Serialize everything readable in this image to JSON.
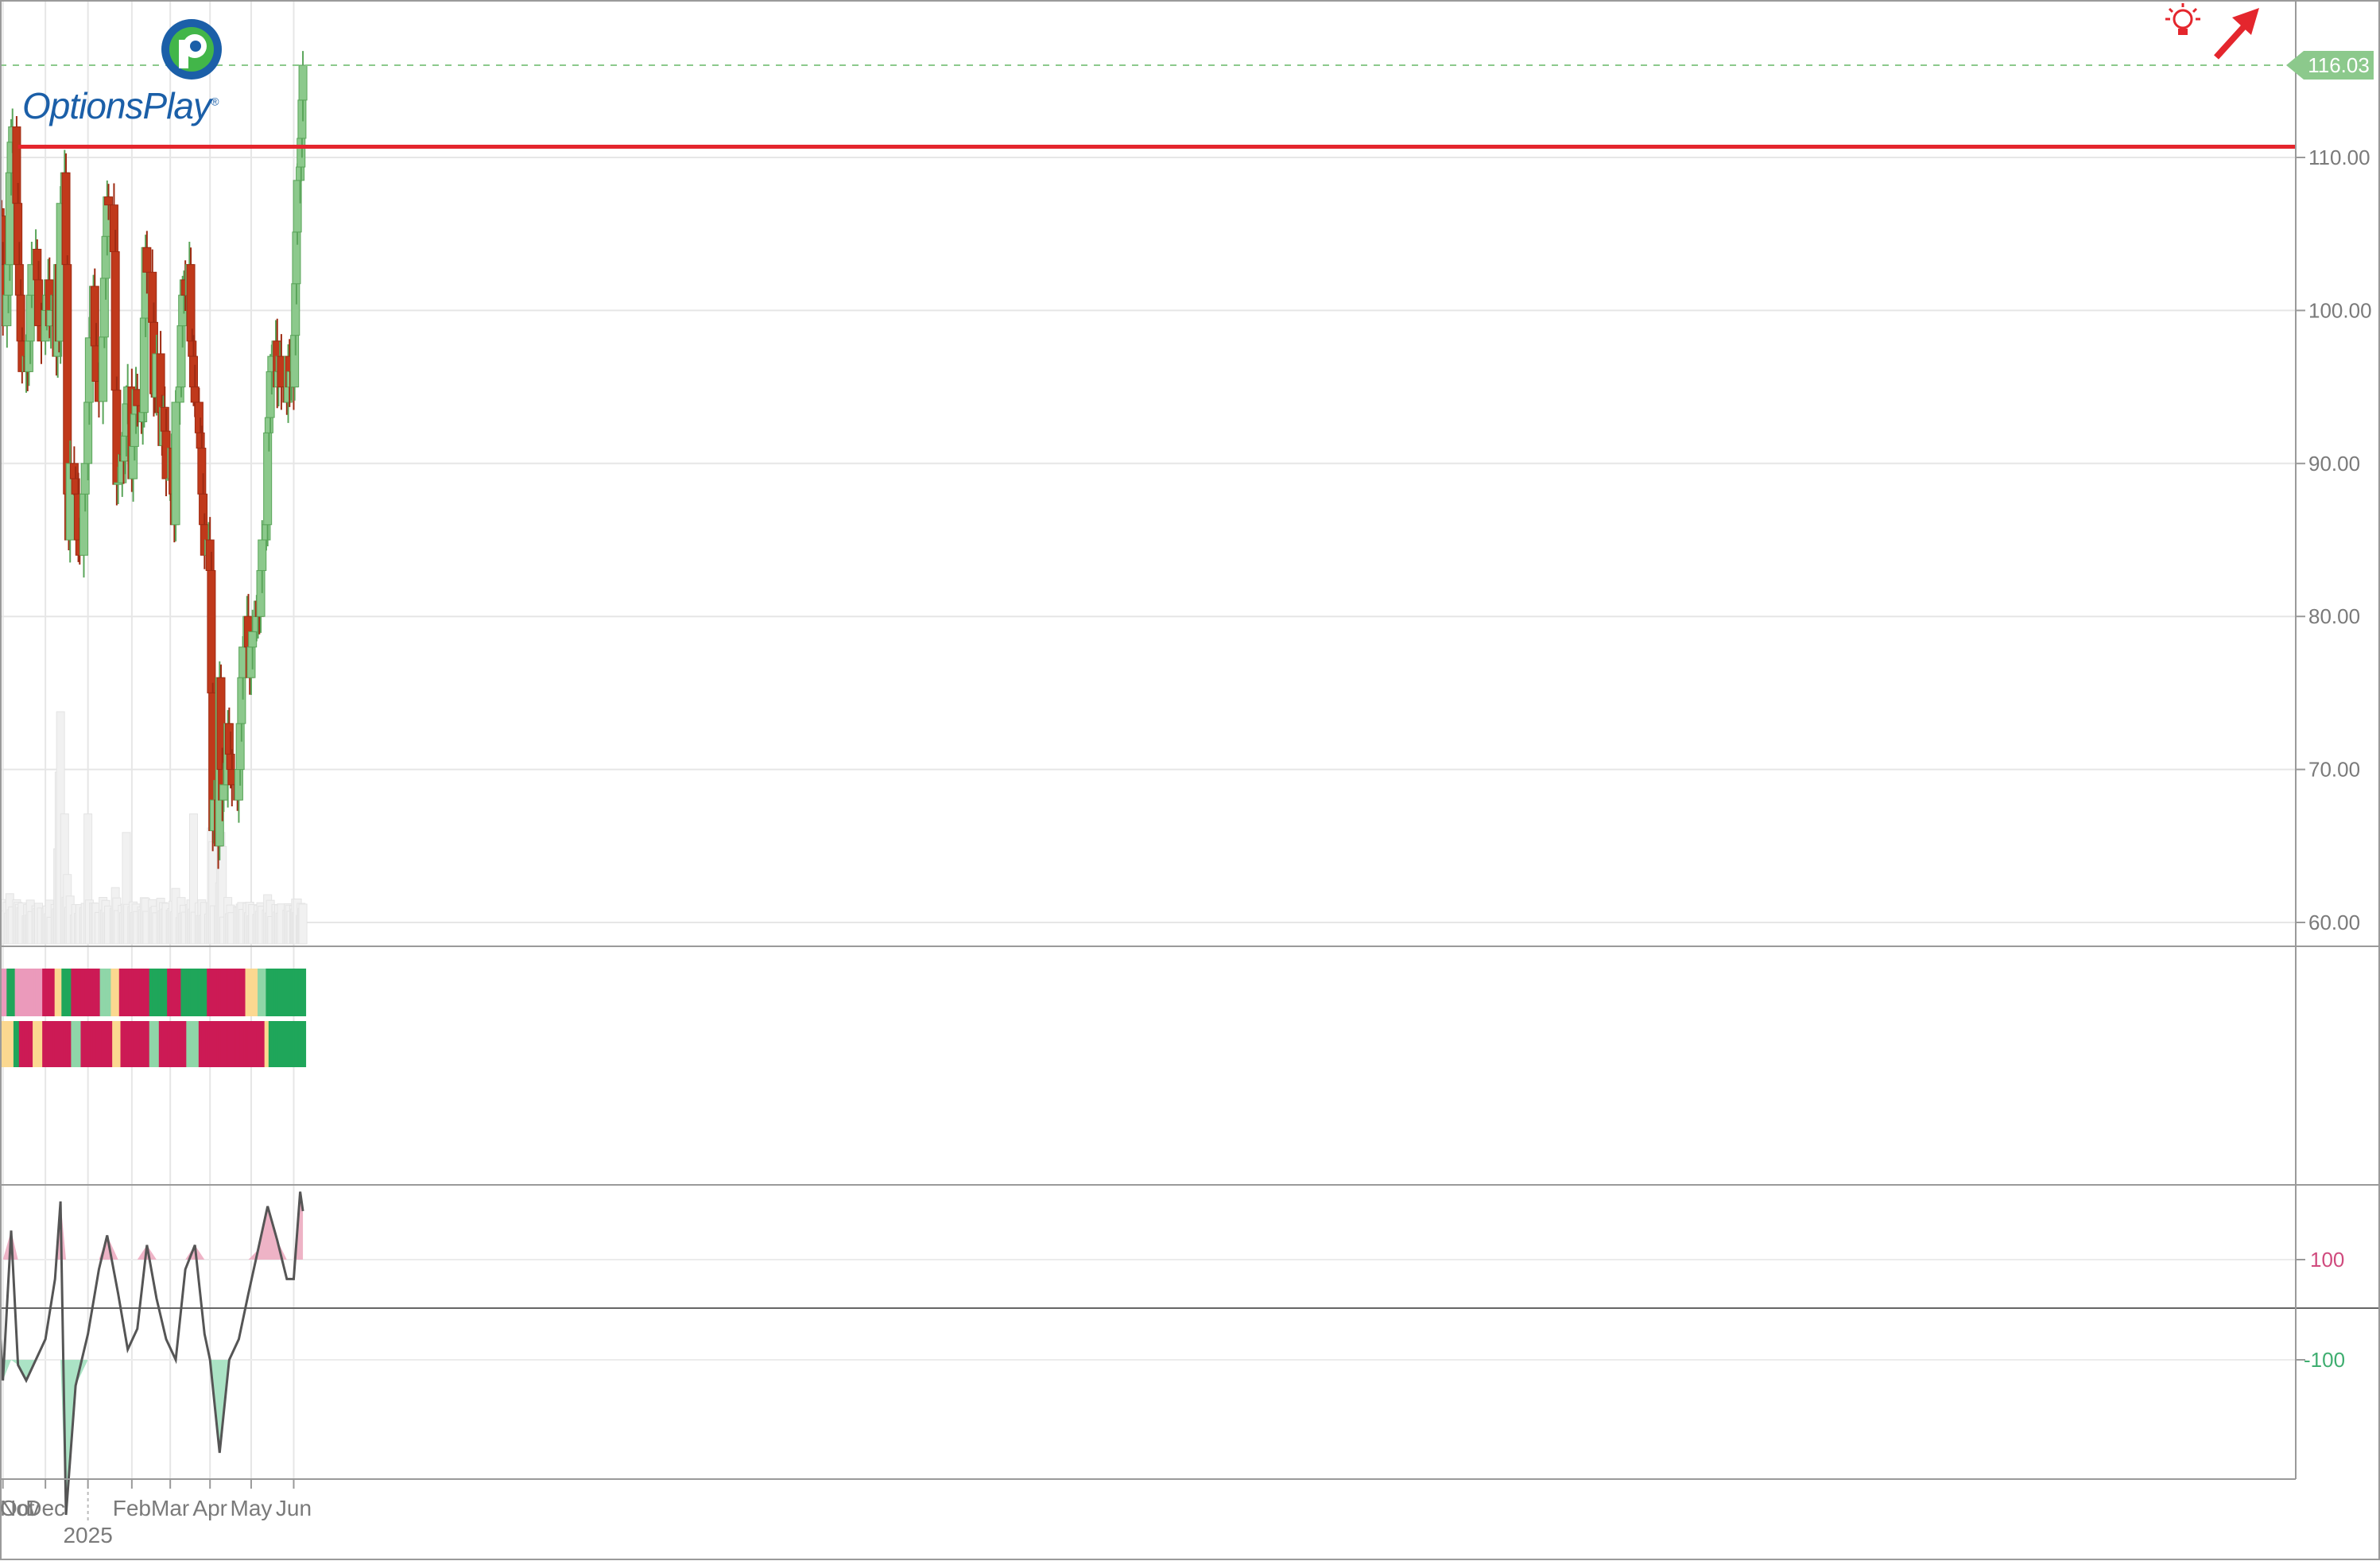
{
  "logo": {
    "brand": "OptionsPlay",
    "mark": "®"
  },
  "colors": {
    "up": "#8cc98c",
    "up_stroke": "#5aa55a",
    "down": "#c0391b",
    "down_stroke": "#9e2a12",
    "resistance": "#e4262d",
    "grid": "#e6e6e6",
    "axis_text": "#7a7a7a",
    "green_dark": "#1fa65a",
    "green_light": "#8fd6a8",
    "yellow": "#fbd890",
    "pink_light": "#eb9abb",
    "red_bar": "#cc1a55",
    "pos_fill": "#eeb3c6",
    "neg_fill": "#abe3c5",
    "price_badge": "#8cc98c",
    "arrow": "#e4262d"
  },
  "chart_data": {
    "type": "candlestick",
    "y_ticks": [
      "60.00",
      "70.00",
      "80.00",
      "90.00",
      "100.00",
      "110.00"
    ],
    "ylim": [
      58.3,
      121.0
    ],
    "last_price_label": "116.03",
    "last_price": 116.03,
    "resistance_level": 110.7,
    "resistance_start": "2024-11-12",
    "x_ticks": [
      {
        "label": "Oct",
        "date": "2024-10-01"
      },
      {
        "label": "Nov",
        "date": "2024-11-01"
      },
      {
        "label": "Dec",
        "date": "2024-12-02"
      },
      {
        "label": "2025",
        "date": "2025-01-02"
      },
      {
        "label": "Feb",
        "date": "2025-02-03"
      },
      {
        "label": "Mar",
        "date": "2025-03-03"
      },
      {
        "label": "Apr",
        "date": "2025-04-01"
      },
      {
        "label": "May",
        "date": "2025-05-01"
      },
      {
        "label": "Jun",
        "date": "2025-06-02"
      }
    ],
    "oscillator_ticks": [
      "100",
      "-100"
    ],
    "segments": [
      {
        "from": "2024-09-30",
        "to": "2024-10-31",
        "closes": [
          101,
          103,
          100,
          101,
          103,
          102,
          103,
          101,
          104,
          106,
          107,
          108,
          106,
          104,
          108,
          110,
          113,
          111,
          108,
          106,
          105,
          104,
          107,
          104,
          106,
          107,
          106,
          103
        ]
      },
      {
        "from": "2024-11-01",
        "to": "2024-11-29",
        "closes": [
          99,
          101,
          103,
          109,
          111,
          112,
          107,
          103,
          101,
          98,
          96,
          97,
          96,
          98,
          101,
          103,
          104,
          102,
          99,
          98
        ]
      },
      {
        "from": "2024-12-02",
        "to": "2024-12-31",
        "closes": [
          100,
          101,
          102,
          99,
          100,
          101,
          97,
          103,
          98,
          107,
          109,
          103,
          88,
          85,
          90,
          89,
          88,
          85,
          84,
          88,
          90
        ]
      },
      {
        "from": "2025-01-02",
        "to": "2025-01-31",
        "closes": [
          94,
          98,
          102,
          98,
          96,
          93,
          97,
          101,
          104,
          106,
          109,
          105,
          103,
          90,
          88,
          89,
          91,
          90,
          92,
          94,
          95
        ]
      },
      {
        "from": "2025-02-03",
        "to": "2025-02-28",
        "closes": [
          89,
          91,
          93,
          95,
          94,
          93,
          92,
          96,
          105,
          103,
          102,
          97,
          93,
          95,
          98,
          92,
          91,
          94,
          92,
          89
        ]
      },
      {
        "from": "2025-03-03",
        "to": "2025-03-31",
        "closes": [
          89,
          91,
          88,
          86,
          94,
          95,
          99,
          101,
          102,
          101,
          103,
          98,
          97,
          95,
          94,
          92,
          91,
          88,
          86,
          84,
          85
        ]
      },
      {
        "from": "2025-04-01",
        "to": "2025-04-30",
        "closes": [
          83,
          75,
          66,
          68,
          65,
          76,
          70,
          68,
          69,
          73,
          71,
          70,
          69,
          68,
          70,
          73,
          76,
          78,
          80,
          78,
          76
        ]
      },
      {
        "from": "2025-05-01",
        "to": "2025-05-30",
        "closes": [
          78,
          79,
          80,
          81,
          80,
          83,
          85,
          86,
          92,
          93,
          96,
          97,
          98,
          95,
          96,
          97,
          95,
          94,
          97,
          95,
          96
        ]
      },
      {
        "from": "2025-06-02",
        "to": "2025-06-12",
        "closes": [
          95,
          98,
          101,
          104,
          107,
          110,
          109,
          112,
          114,
          116.03
        ]
      }
    ],
    "volume_peaks": [
      {
        "date": "2024-12-13",
        "level": 1.0
      },
      {
        "date": "2024-12-12",
        "level": 0.74
      },
      {
        "date": "2024-12-11",
        "level": 0.41
      },
      {
        "date": "2024-12-16",
        "level": 0.56
      },
      {
        "date": "2025-01-02",
        "level": 0.56
      },
      {
        "date": "2025-01-30",
        "level": 0.48
      },
      {
        "date": "2025-03-20",
        "level": 0.56
      },
      {
        "date": "2025-04-02",
        "level": 0.5
      },
      {
        "date": "2025-04-03",
        "level": 0.44
      },
      {
        "date": "2025-04-09",
        "level": 0.48
      },
      {
        "date": "2025-04-10",
        "level": 0.42
      }
    ],
    "signal_rows": [
      [
        {
          "from": "2024-09-30",
          "to": "2024-10-23",
          "state": "green_dark"
        },
        {
          "from": "2024-10-24",
          "to": "2024-10-24",
          "state": "yellow"
        },
        {
          "from": "2024-10-25",
          "to": "2024-10-31",
          "state": "green_dark"
        },
        {
          "from": "2024-11-01",
          "to": "2024-11-05",
          "state": "pink_light"
        },
        {
          "from": "2024-11-06",
          "to": "2024-11-11",
          "state": "green_dark"
        },
        {
          "from": "2024-11-12",
          "to": "2024-11-29",
          "state": "pink_light"
        },
        {
          "from": "2024-12-02",
          "to": "2024-12-10",
          "state": "red_bar"
        },
        {
          "from": "2024-12-11",
          "to": "2024-12-13",
          "state": "yellow"
        },
        {
          "from": "2024-12-16",
          "to": "2024-12-20",
          "state": "green_dark"
        },
        {
          "from": "2024-12-23",
          "to": "2025-01-10",
          "state": "red_bar"
        },
        {
          "from": "2025-01-13",
          "to": "2025-01-17",
          "state": "green_light"
        },
        {
          "from": "2025-01-21",
          "to": "2025-01-24",
          "state": "yellow"
        },
        {
          "from": "2025-01-27",
          "to": "2025-02-14",
          "state": "red_bar"
        },
        {
          "from": "2025-02-18",
          "to": "2025-02-28",
          "state": "green_dark"
        },
        {
          "from": "2025-03-03",
          "to": "2025-03-12",
          "state": "red_bar"
        },
        {
          "from": "2025-03-13",
          "to": "2025-03-31",
          "state": "green_dark"
        },
        {
          "from": "2025-04-01",
          "to": "2025-04-28",
          "state": "red_bar"
        },
        {
          "from": "2025-04-29",
          "to": "2025-05-07",
          "state": "yellow"
        },
        {
          "from": "2025-05-08",
          "to": "2025-05-13",
          "state": "green_light"
        },
        {
          "from": "2025-05-14",
          "to": "2025-06-12",
          "state": "green_dark"
        }
      ],
      [
        {
          "from": "2024-09-30",
          "to": "2024-10-14",
          "state": "yellow"
        },
        {
          "from": "2024-10-15",
          "to": "2024-10-25",
          "state": "green_light"
        },
        {
          "from": "2024-10-28",
          "to": "2024-11-08",
          "state": "yellow"
        },
        {
          "from": "2024-11-11",
          "to": "2024-11-14",
          "state": "green_dark"
        },
        {
          "from": "2024-11-15",
          "to": "2024-11-22",
          "state": "red_bar"
        },
        {
          "from": "2024-11-25",
          "to": "2024-11-29",
          "state": "yellow"
        },
        {
          "from": "2024-12-02",
          "to": "2024-12-20",
          "state": "red_bar"
        },
        {
          "from": "2024-12-23",
          "to": "2024-12-27",
          "state": "green_light"
        },
        {
          "from": "2024-12-30",
          "to": "2025-01-21",
          "state": "red_bar"
        },
        {
          "from": "2025-01-22",
          "to": "2025-01-27",
          "state": "yellow"
        },
        {
          "from": "2025-01-28",
          "to": "2025-02-14",
          "state": "red_bar"
        },
        {
          "from": "2025-02-18",
          "to": "2025-02-24",
          "state": "green_light"
        },
        {
          "from": "2025-02-25",
          "to": "2025-03-14",
          "state": "red_bar"
        },
        {
          "from": "2025-03-17",
          "to": "2025-03-25",
          "state": "green_light"
        },
        {
          "from": "2025-03-26",
          "to": "2025-05-12",
          "state": "red_bar"
        },
        {
          "from": "2025-05-13",
          "to": "2025-05-15",
          "state": "yellow"
        },
        {
          "from": "2025-05-16",
          "to": "2025-06-12",
          "state": "green_dark"
        }
      ]
    ],
    "oscillator": [
      [
        "2024-09-30",
        120
      ],
      [
        "2024-10-07",
        100
      ],
      [
        "2024-10-14",
        115
      ],
      [
        "2024-10-21",
        160
      ],
      [
        "2024-10-28",
        40
      ],
      [
        "2024-11-01",
        -140
      ],
      [
        "2024-11-07",
        160
      ],
      [
        "2024-11-12",
        -110
      ],
      [
        "2024-11-18",
        -140
      ],
      [
        "2024-11-25",
        -100
      ],
      [
        "2024-12-02",
        -60
      ],
      [
        "2024-12-09",
        60
      ],
      [
        "2024-12-13",
        220
      ],
      [
        "2024-12-17",
        -400
      ],
      [
        "2024-12-24",
        -150
      ],
      [
        "2025-01-02",
        -50
      ],
      [
        "2025-01-10",
        80
      ],
      [
        "2025-01-16",
        150
      ],
      [
        "2025-01-24",
        30
      ],
      [
        "2025-01-31",
        -80
      ],
      [
        "2025-02-07",
        -40
      ],
      [
        "2025-02-14",
        130
      ],
      [
        "2025-02-21",
        20
      ],
      [
        "2025-02-28",
        -60
      ],
      [
        "2025-03-07",
        -100
      ],
      [
        "2025-03-14",
        80
      ],
      [
        "2025-03-21",
        130
      ],
      [
        "2025-03-28",
        -50
      ],
      [
        "2025-04-01",
        -100
      ],
      [
        "2025-04-08",
        -280
      ],
      [
        "2025-04-15",
        -100
      ],
      [
        "2025-04-22",
        -60
      ],
      [
        "2025-04-29",
        30
      ],
      [
        "2025-05-06",
        120
      ],
      [
        "2025-05-13",
        210
      ],
      [
        "2025-05-20",
        140
      ],
      [
        "2025-05-27",
        60
      ],
      [
        "2025-06-02",
        60
      ],
      [
        "2025-06-09",
        240
      ],
      [
        "2025-06-12",
        200
      ]
    ]
  }
}
